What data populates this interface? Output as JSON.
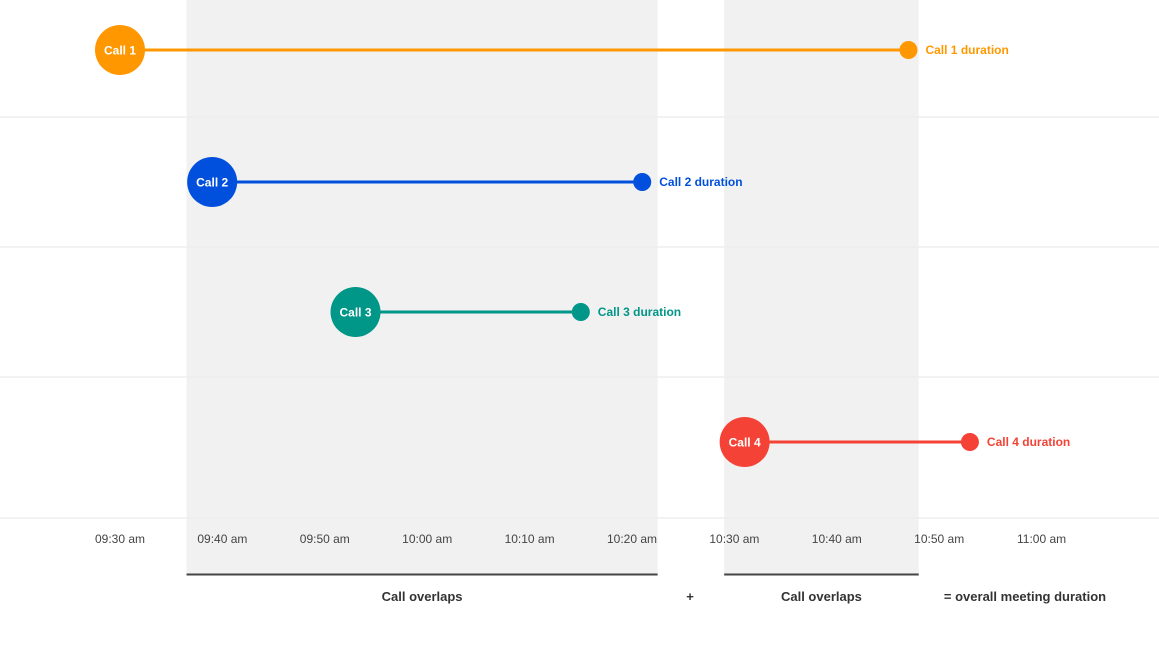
{
  "chart_data": {
    "type": "timeline",
    "x_ticks": [
      "09:30 am",
      "09:40 am",
      "09:50 am",
      "10:00 am",
      "10:10 am",
      "10:20 am",
      "10:30 am",
      "10:40 am",
      "10:50 am",
      "11:00 am"
    ],
    "xlim": [
      "09:30",
      "11:00"
    ],
    "grid": true,
    "calls": [
      {
        "label": "Call 1",
        "duration_label": "Call 1 duration",
        "start": "09:30",
        "end": "10:47",
        "color": "#FF9800"
      },
      {
        "label": "Call 2",
        "duration_label": "Call 2 duration",
        "start": "09:39",
        "end": "10:21",
        "color": "#0050DD"
      },
      {
        "label": "Call 3",
        "duration_label": "Call 3 duration",
        "start": "09:53",
        "end": "10:15",
        "color": "#009688"
      },
      {
        "label": "Call 4",
        "duration_label": "Call 4 duration",
        "start": "10:31",
        "end": "10:53",
        "color": "#F44336"
      }
    ],
    "overlap_bands": [
      {
        "start": "09:36.5",
        "end": "10:22.5",
        "label": "Call overlaps"
      },
      {
        "start": "10:29",
        "end": "10:48",
        "label": "Call overlaps"
      }
    ],
    "footer": {
      "plus": "+",
      "result": "= overall meeting duration"
    }
  }
}
